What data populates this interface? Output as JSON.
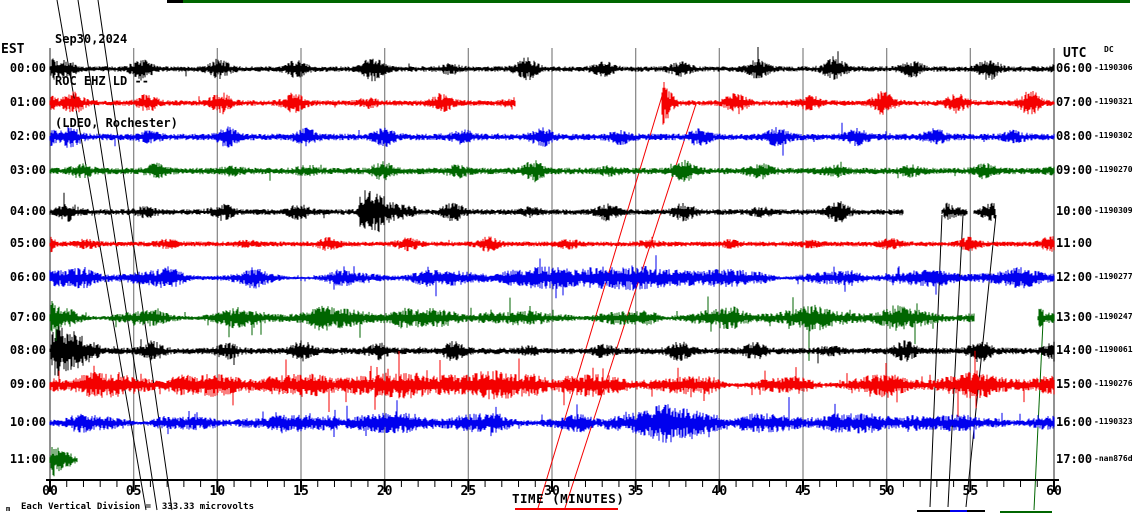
{
  "title": {
    "date": "Sep30,2024",
    "station_line": "ROC EHZ LD --",
    "location_line": "(LDEO, Rochester)"
  },
  "axes": {
    "left_header": "EST",
    "right_header": "UTC",
    "dc_header": "DC",
    "x_label": "TIME (MINUTES)",
    "x_ticks": [
      "00",
      "05",
      "10",
      "15",
      "20",
      "25",
      "30",
      "35",
      "40",
      "45",
      "50",
      "55",
      "60"
    ]
  },
  "footer": {
    "marker": "m",
    "scale_note": "Each Vertical Division =  333.33 microvolts"
  },
  "colors": {
    "black": "#000000",
    "red": "#f40000",
    "blue": "#0000ee",
    "green": "#006600",
    "grid": "#8c8c8c",
    "border": "#6e6e6e",
    "axis": "#000000"
  },
  "chart_data": {
    "type": "line",
    "kind": "helicorder-seismogram",
    "station": "ROC EHZ LD --",
    "network": "(LDEO, Rochester)",
    "date": "Sep30,2024",
    "x_range_minutes": [
      0,
      60
    ],
    "minutes_per_row": 60,
    "vertical_division_microvolts": 333.33,
    "rows": [
      {
        "est": "00:00",
        "utc": "06:00",
        "dc": "-1190306",
        "color": "black",
        "y": 69,
        "base_amp": 2.5,
        "period": 4.6,
        "phase": 0.9,
        "burst_amp": 8,
        "spike_p": 0.004,
        "busy": false,
        "seed": 1,
        "segments": [
          [
            0,
            60
          ]
        ],
        "events": [
          {
            "t0": 0,
            "t1": 1.6,
            "amp": 10
          }
        ]
      },
      {
        "est": "01:00",
        "utc": "07:00",
        "dc": "-1190321",
        "color": "red",
        "y": 103,
        "base_amp": 2.5,
        "period": 4.4,
        "phase": 1.4,
        "burst_amp": 8,
        "spike_p": 0.004,
        "busy": false,
        "seed": 2,
        "segments": [
          [
            0,
            27.8
          ],
          [
            36.55,
            60
          ]
        ],
        "events": [
          {
            "t0": 0,
            "t1": 0.5,
            "amp": 10
          },
          {
            "t0": 36.55,
            "t1": 37.3,
            "amp": 13
          }
        ]
      },
      {
        "est": "02:00",
        "utc": "08:00",
        "dc": "-1190302",
        "color": "blue",
        "y": 137,
        "base_amp": 3,
        "period": 4.7,
        "phase": 1.2,
        "burst_amp": 6.5,
        "spike_p": 0.004,
        "busy": false,
        "seed": 3,
        "segments": [
          [
            0,
            60
          ]
        ],
        "events": [
          {
            "t0": 0,
            "t1": 0.5,
            "amp": 8
          }
        ]
      },
      {
        "est": "03:00",
        "utc": "09:00",
        "dc": "-1190270",
        "color": "green",
        "y": 171,
        "base_amp": 3,
        "period": 4.5,
        "phase": 1.9,
        "burst_amp": 6.5,
        "spike_p": 0.005,
        "busy": false,
        "seed": 4,
        "segments": [
          [
            0,
            60
          ]
        ],
        "events": []
      },
      {
        "est": "04:00",
        "utc": "10:00",
        "dc": "-1190309",
        "color": "black",
        "y": 212,
        "base_amp": 2.6,
        "period": 4.6,
        "phase": 1.1,
        "burst_amp": 6.5,
        "spike_p": 0.003,
        "busy": false,
        "seed": 5,
        "segments": [
          [
            0,
            51.0
          ],
          [
            53.3,
            54.8
          ],
          [
            55.2,
            56.5
          ]
        ],
        "events": [
          {
            "t0": 18.3,
            "t1": 21.9,
            "amp": 20
          },
          {
            "t0": 53.4,
            "t1": 54.7,
            "amp": 8
          }
        ]
      },
      {
        "est": "05:00",
        "utc": "11:00",
        "dc": "",
        "color": "red",
        "y": 244,
        "base_amp": 2.3,
        "period": 4.8,
        "phase": 2.2,
        "burst_amp": 4.5,
        "spike_p": 0.003,
        "busy": false,
        "seed": 6,
        "segments": [
          [
            0,
            60
          ]
        ],
        "events": [
          {
            "t0": 0,
            "t1": 0.4,
            "amp": 9
          }
        ]
      },
      {
        "est": "06:00",
        "utc": "12:00",
        "dc": "-1190277",
        "color": "blue",
        "y": 278,
        "base_amp": 4.5,
        "period": 5.1,
        "phase": 2.0,
        "burst_amp": 4,
        "spike_p": 0.015,
        "busy": true,
        "seed": 7,
        "segments": [
          [
            0,
            60
          ]
        ],
        "events": [
          {
            "t0": 28,
            "t1": 43,
            "amp": 5,
            "flat": true
          }
        ]
      },
      {
        "est": "07:00",
        "utc": "13:00",
        "dc": "-1190247",
        "color": "green",
        "y": 318,
        "base_amp": 5.5,
        "period": 4.9,
        "phase": 1.5,
        "burst_amp": 3.5,
        "spike_p": 0.02,
        "busy": true,
        "seed": 8,
        "segments": [
          [
            0,
            55.2
          ],
          [
            59.05,
            60
          ]
        ],
        "events": [
          {
            "t0": 0,
            "t1": 1.5,
            "amp": 10
          },
          {
            "t0": 59.05,
            "t1": 60,
            "amp": 10
          }
        ]
      },
      {
        "est": "08:00",
        "utc": "14:00",
        "dc": "-1190061",
        "color": "black",
        "y": 351,
        "base_amp": 3,
        "period": 4.5,
        "phase": 1.6,
        "burst_amp": 7,
        "spike_p": 0.004,
        "busy": false,
        "seed": 9,
        "segments": [
          [
            0,
            60
          ]
        ],
        "events": [
          {
            "t0": 0,
            "t1": 3,
            "amp": 28
          }
        ]
      },
      {
        "est": "09:00",
        "utc": "15:00",
        "dc": "-1190276",
        "color": "red",
        "y": 385,
        "base_amp": 6.5,
        "period": 5.3,
        "phase": 2.4,
        "burst_amp": 3,
        "spike_p": 0.028,
        "busy": true,
        "seed": 10,
        "segments": [
          [
            0,
            60
          ]
        ],
        "events": [
          {
            "t0": 8,
            "t1": 30,
            "amp": 4,
            "flat": true
          }
        ]
      },
      {
        "est": "10:00",
        "utc": "16:00",
        "dc": "-1190323",
        "color": "blue",
        "y": 423,
        "base_amp": 5.5,
        "period": 5.0,
        "phase": 1.7,
        "burst_amp": 3,
        "spike_p": 0.02,
        "busy": true,
        "seed": 11,
        "segments": [
          [
            0,
            60
          ]
        ],
        "events": [
          {
            "t0": 33,
            "t1": 40.5,
            "amp": 9,
            "flat": true
          }
        ]
      },
      {
        "est": "11:00",
        "utc": "17:00",
        "dc": "-nan876d",
        "color": "green",
        "y": 460,
        "base_amp": 4,
        "period": 0,
        "phase": 0,
        "burst_amp": 0,
        "spike_p": 0,
        "busy": false,
        "seed": 12,
        "segments": [
          [
            0,
            1.6
          ]
        ],
        "events": [
          {
            "t0": 0,
            "t1": 1.3,
            "amp": 16
          }
        ]
      }
    ],
    "gap_lines": [
      {
        "color": "black",
        "x1": 57,
        "y1": 0,
        "x2": 146,
        "y2": 510
      },
      {
        "color": "black",
        "x1": 78,
        "y1": 0,
        "x2": 157,
        "y2": 510
      },
      {
        "color": "black",
        "x1": 98,
        "y1": 0,
        "x2": 172,
        "y2": 510
      },
      {
        "color": "black",
        "x1": 942,
        "y1": 215,
        "x2": 930,
        "y2": 507
      },
      {
        "color": "black",
        "x1": 963,
        "y1": 215,
        "x2": 948,
        "y2": 507
      },
      {
        "color": "black",
        "x1": 996,
        "y1": 215,
        "x2": 966,
        "y2": 507
      },
      {
        "color": "red",
        "x1": 662,
        "y1": 96,
        "x2": 538,
        "y2": 508
      },
      {
        "color": "red",
        "x1": 696,
        "y1": 104,
        "x2": 565,
        "y2": 508
      },
      {
        "color": "green",
        "x1": 1043,
        "y1": 322,
        "x2": 1034,
        "y2": 510
      }
    ],
    "top_overflow_lines": [
      {
        "color": "black",
        "x1": 167,
        "x2": 183,
        "y": 1.5
      },
      {
        "color": "green",
        "x1": 183,
        "x2": 1130,
        "y": 1.5
      }
    ],
    "bottom_marks": [
      {
        "color": "black",
        "x1": 917,
        "x2": 985,
        "y": 511
      },
      {
        "color": "blue",
        "x1": 950,
        "x2": 967,
        "y": 511
      },
      {
        "color": "green",
        "x1": 1000,
        "x2": 1052,
        "y": 512
      },
      {
        "color": "red",
        "x1": 515,
        "x2": 618,
        "y": 509
      }
    ]
  }
}
